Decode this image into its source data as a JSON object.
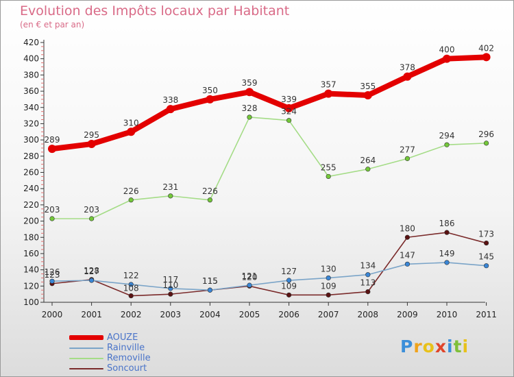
{
  "title": "Evolution des Impôts locaux par Habitant",
  "subtitle": "(en € et par an)",
  "brand": {
    "letters": [
      "P",
      "r",
      "o",
      "x",
      "i",
      "t",
      "i"
    ],
    "colors": [
      "#3c8fd9",
      "#f0a31c",
      "#e8c11a",
      "#e0452a",
      "#3c8fd9",
      "#7fbf3a",
      "#e8c11a"
    ]
  },
  "chart_data": {
    "type": "line",
    "title": "Evolution des Impôts locaux par Habitant",
    "subtitle": "(en € et par an)",
    "xlabel": "",
    "ylabel": "",
    "x": [
      "2000",
      "2001",
      "2002",
      "2003",
      "2004",
      "2005",
      "2006",
      "2007",
      "2008",
      "2009",
      "2010",
      "2011"
    ],
    "ylim": [
      100,
      420
    ],
    "yticks": [
      100,
      120,
      140,
      160,
      180,
      200,
      220,
      240,
      260,
      280,
      300,
      320,
      340,
      360,
      380,
      400,
      420
    ],
    "grid": false,
    "legend_position": "bottom-left",
    "series": [
      {
        "name": "AOUZE",
        "values": [
          289,
          295,
          310,
          338,
          350,
          359,
          339,
          357,
          355,
          378,
          400,
          402
        ],
        "labels": [
          "289",
          "295",
          "310",
          "338",
          "350",
          "359",
          "339",
          "357",
          "355",
          "378",
          "400",
          "402"
        ],
        "color": "#e30000",
        "dot_color": "#e30000",
        "legend_color": "#e30000"
      },
      {
        "name": "Rainville",
        "values": [
          126,
          127,
          122,
          117,
          115,
          121,
          127,
          130,
          134,
          147,
          149,
          145
        ],
        "labels": [
          "126",
          "127",
          "122",
          "117",
          "115",
          "121",
          "127",
          "130",
          "134",
          "147",
          "149",
          "145"
        ],
        "color": "#7aa4c8",
        "dot_color": "#3a86d6",
        "legend_color": "#7aa4c8"
      },
      {
        "name": "Removille",
        "values": [
          203,
          203,
          226,
          231,
          226,
          328,
          324,
          255,
          264,
          277,
          294,
          296
        ],
        "labels": [
          "203",
          "203",
          "226",
          "231",
          "226",
          "328",
          "324",
          "255",
          "264",
          "277",
          "294",
          "296"
        ],
        "color": "#a4dc86",
        "dot_color": "#74c83a",
        "legend_color": "#a4dc86"
      },
      {
        "name": "Soncourt",
        "values": [
          123,
          128,
          108,
          110,
          115,
          120,
          109,
          109,
          113,
          180,
          186,
          173
        ],
        "labels": [
          "123",
          "128",
          "108",
          "110",
          "115",
          "120",
          "109",
          "109",
          "113",
          "180",
          "186",
          "173"
        ],
        "color": "#7a2a2a",
        "dot_color": "#5a1212",
        "legend_color": "#7a2a2a"
      }
    ]
  }
}
